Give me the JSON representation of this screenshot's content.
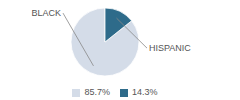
{
  "chart_data": {
    "type": "pie",
    "categories": [
      "BLACK",
      "HISPANIC"
    ],
    "values": [
      85.7,
      14.3
    ],
    "value_labels": [
      "85.7%",
      "14.3%"
    ],
    "colors": [
      "#d4dce8",
      "#2e6b8a"
    ],
    "legend": "bottom"
  }
}
